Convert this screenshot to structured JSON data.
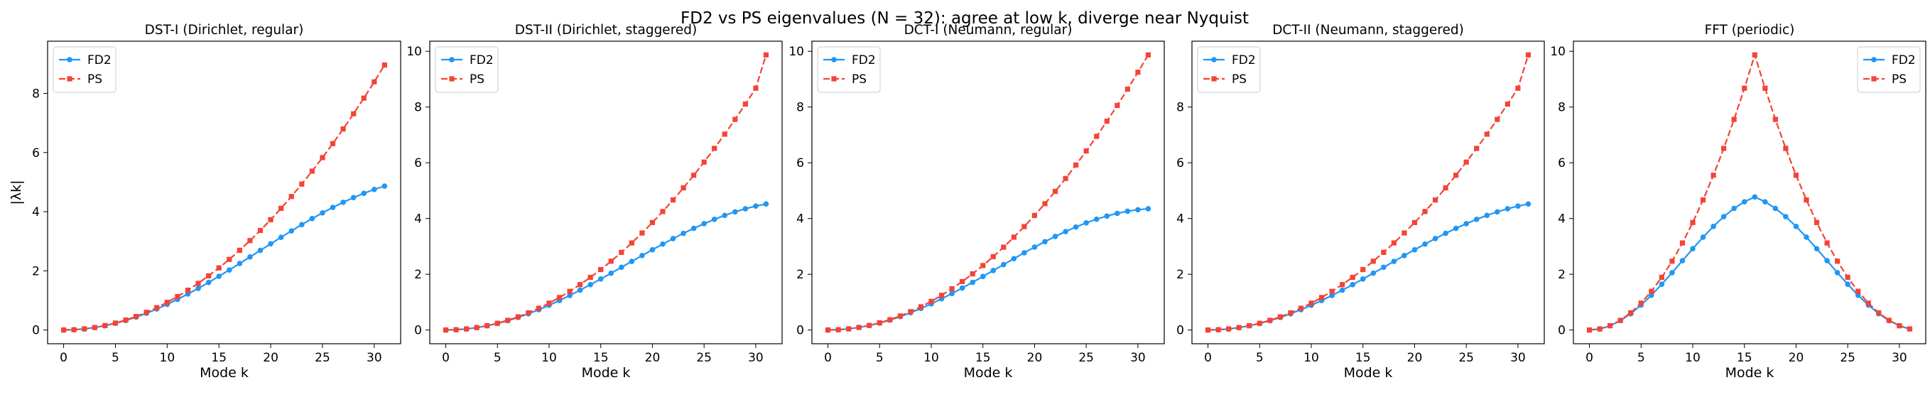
{
  "figure": {
    "suptitle": "FD2 vs PS eigenvalues (N = 32): agree at low k, diverge near Nyquist"
  },
  "colors": {
    "fd2": "#2196F3",
    "ps": "#F44336"
  },
  "chart_data": [
    {
      "type": "line",
      "title": "DST-I (Dirichlet, regular)",
      "xlabel": "Mode k",
      "ylabel": "|λk|",
      "xlim": [
        -1.55,
        32.55
      ],
      "ylim": [
        -0.465,
        9.765
      ],
      "xticks": [
        0,
        5,
        10,
        15,
        20,
        25,
        30
      ],
      "yticks": [
        0,
        2,
        4,
        6,
        8
      ],
      "legend": "top-left",
      "grid": false,
      "x": [
        0,
        1,
        2,
        3,
        4,
        5,
        6,
        7,
        8,
        9,
        10,
        11,
        12,
        13,
        14,
        15,
        16,
        17,
        18,
        19,
        20,
        21,
        22,
        23,
        24,
        25,
        26,
        27,
        28,
        29,
        30,
        31
      ],
      "series": [
        {
          "name": "FD2",
          "marker": "circle",
          "dash": false,
          "values": [
            0,
            0.009,
            0.037,
            0.083,
            0.146,
            0.227,
            0.324,
            0.437,
            0.566,
            0.709,
            0.866,
            1.035,
            1.216,
            1.407,
            1.607,
            1.815,
            2.029,
            2.247,
            2.469,
            2.692,
            2.914,
            3.134,
            3.35,
            3.561,
            3.765,
            3.959,
            4.144,
            4.317,
            4.477,
            4.622,
            4.752,
            4.866
          ]
        },
        {
          "name": "PS",
          "marker": "square",
          "dash": true,
          "values": [
            0,
            0.009,
            0.037,
            0.084,
            0.149,
            0.233,
            0.336,
            0.457,
            0.597,
            0.756,
            0.933,
            1.129,
            1.344,
            1.577,
            1.829,
            2.099,
            2.388,
            2.696,
            3.022,
            3.367,
            3.731,
            4.113,
            4.514,
            4.933,
            5.371,
            5.828,
            6.303,
            6.797,
            7.31,
            7.841,
            8.391,
            8.96
          ]
        }
      ]
    },
    {
      "type": "line",
      "title": "DST-II (Dirichlet, staggered)",
      "xlabel": "Mode k",
      "ylabel": "",
      "xlim": [
        -1.55,
        32.55
      ],
      "ylim": [
        -0.493,
        10.363
      ],
      "xticks": [
        0,
        5,
        10,
        15,
        20,
        25,
        30
      ],
      "yticks": [
        0,
        2,
        4,
        6,
        8,
        10
      ],
      "legend": "top-left",
      "grid": false,
      "x": [
        0,
        1,
        2,
        3,
        4,
        5,
        6,
        7,
        8,
        9,
        10,
        11,
        12,
        13,
        14,
        15,
        16,
        17,
        18,
        19,
        20,
        21,
        22,
        23,
        24,
        25,
        26,
        27,
        28,
        29,
        30,
        31
      ],
      "series": [
        {
          "name": "FD2",
          "marker": "circle",
          "dash": false,
          "values": [
            0,
            0.01,
            0.038,
            0.086,
            0.152,
            0.235,
            0.335,
            0.451,
            0.583,
            0.729,
            0.888,
            1.058,
            1.239,
            1.429,
            1.627,
            1.831,
            2.039,
            2.25,
            2.462,
            2.672,
            2.88,
            3.083,
            3.28,
            3.468,
            3.647,
            3.815,
            3.971,
            4.113,
            4.24,
            4.351,
            4.446,
            4.523
          ]
        },
        {
          "name": "PS",
          "marker": "square",
          "dash": true,
          "values": [
            0,
            0.01,
            0.039,
            0.087,
            0.154,
            0.241,
            0.347,
            0.472,
            0.617,
            0.781,
            0.964,
            1.166,
            1.388,
            1.629,
            1.89,
            2.169,
            2.468,
            2.786,
            3.124,
            3.481,
            3.856,
            4.252,
            4.666,
            5.1,
            5.553,
            6.025,
            6.516,
            7.027,
            7.557,
            8.106,
            8.675,
            9.87
          ]
        }
      ]
    },
    {
      "type": "line",
      "title": "DCT-I (Neumann, regular)",
      "xlabel": "Mode k",
      "ylabel": "",
      "xlim": [
        -1.55,
        32.55
      ],
      "ylim": [
        -0.493,
        10.363
      ],
      "xticks": [
        0,
        5,
        10,
        15,
        20,
        25,
        30
      ],
      "yticks": [
        0,
        2,
        4,
        6,
        8,
        10
      ],
      "legend": "top-left",
      "grid": false,
      "x": [
        0,
        1,
        2,
        3,
        4,
        5,
        6,
        7,
        8,
        9,
        10,
        11,
        12,
        13,
        14,
        15,
        16,
        17,
        18,
        19,
        20,
        21,
        22,
        23,
        24,
        25,
        26,
        27,
        28,
        29,
        30,
        31
      ],
      "series": [
        {
          "name": "FD2",
          "marker": "circle",
          "dash": false,
          "values": [
            0,
            0.01,
            0.041,
            0.092,
            0.162,
            0.251,
            0.357,
            0.48,
            0.619,
            0.773,
            0.94,
            1.119,
            1.308,
            1.506,
            1.711,
            1.921,
            2.134,
            2.348,
            2.561,
            2.77,
            2.974,
            3.17,
            3.357,
            3.533,
            3.696,
            3.844,
            3.976,
            4.09,
            4.185,
            4.261,
            4.316,
            4.35
          ]
        },
        {
          "name": "PS",
          "marker": "square",
          "dash": true,
          "values": [
            0,
            0.01,
            0.041,
            0.093,
            0.165,
            0.257,
            0.37,
            0.504,
            0.658,
            0.833,
            1.028,
            1.244,
            1.481,
            1.738,
            2.015,
            2.313,
            2.632,
            2.971,
            3.331,
            3.711,
            4.112,
            4.533,
            4.975,
            5.437,
            5.92,
            6.424,
            6.948,
            7.492,
            8.057,
            8.643,
            9.249,
            9.87
          ]
        }
      ]
    },
    {
      "type": "line",
      "title": "DCT-II (Neumann, staggered)",
      "xlabel": "Mode k",
      "ylabel": "",
      "xlim": [
        -1.55,
        32.55
      ],
      "ylim": [
        -0.493,
        10.363
      ],
      "xticks": [
        0,
        5,
        10,
        15,
        20,
        25,
        30
      ],
      "yticks": [
        0,
        2,
        4,
        6,
        8
      ],
      "legend": "top-left",
      "grid": false,
      "x": [
        0,
        1,
        2,
        3,
        4,
        5,
        6,
        7,
        8,
        9,
        10,
        11,
        12,
        13,
        14,
        15,
        16,
        17,
        18,
        19,
        20,
        21,
        22,
        23,
        24,
        25,
        26,
        27,
        28,
        29,
        30,
        31
      ],
      "series": [
        {
          "name": "FD2",
          "marker": "circle",
          "dash": false,
          "values": [
            0,
            0.01,
            0.038,
            0.086,
            0.152,
            0.235,
            0.335,
            0.451,
            0.583,
            0.729,
            0.888,
            1.058,
            1.239,
            1.429,
            1.627,
            1.831,
            2.039,
            2.25,
            2.462,
            2.672,
            2.88,
            3.083,
            3.28,
            3.468,
            3.647,
            3.815,
            3.971,
            4.113,
            4.24,
            4.351,
            4.446,
            4.523
          ]
        },
        {
          "name": "PS",
          "marker": "square",
          "dash": true,
          "values": [
            0,
            0.01,
            0.039,
            0.087,
            0.154,
            0.241,
            0.347,
            0.472,
            0.617,
            0.781,
            0.964,
            1.166,
            1.388,
            1.629,
            1.89,
            2.169,
            2.468,
            2.786,
            3.124,
            3.481,
            3.856,
            4.252,
            4.666,
            5.1,
            5.553,
            6.025,
            6.516,
            7.027,
            7.557,
            8.106,
            8.675,
            9.87
          ]
        }
      ]
    },
    {
      "type": "line",
      "title": "FFT (periodic)",
      "xlabel": "Mode k",
      "ylabel": "",
      "xlim": [
        -1.55,
        32.55
      ],
      "ylim": [
        -0.493,
        10.363
      ],
      "xticks": [
        0,
        5,
        10,
        15,
        20,
        25,
        30
      ],
      "yticks": [
        0,
        2,
        4,
        6,
        8,
        10
      ],
      "legend": "top-right",
      "grid": false,
      "x": [
        0,
        1,
        2,
        3,
        4,
        5,
        6,
        7,
        8,
        9,
        10,
        11,
        12,
        13,
        14,
        15,
        16,
        17,
        18,
        19,
        20,
        21,
        22,
        23,
        24,
        25,
        26,
        27,
        28,
        29,
        30,
        31
      ],
      "series": [
        {
          "name": "FD2",
          "marker": "circle",
          "dash": false,
          "values": [
            0,
            0.038,
            0.152,
            0.336,
            0.586,
            0.893,
            1.248,
            1.64,
            2.057,
            2.487,
            2.916,
            3.331,
            3.718,
            4.066,
            4.363,
            4.6,
            4.773,
            4.6,
            4.363,
            4.066,
            3.718,
            3.331,
            2.916,
            2.487,
            2.057,
            1.64,
            1.248,
            0.893,
            0.586,
            0.336,
            0.152,
            0.038
          ]
        },
        {
          "name": "PS",
          "marker": "square",
          "dash": true,
          "values": [
            0,
            0.039,
            0.154,
            0.347,
            0.617,
            0.964,
            1.388,
            1.89,
            2.468,
            3.124,
            3.856,
            4.666,
            5.553,
            6.516,
            7.557,
            8.675,
            9.87,
            8.675,
            7.557,
            6.516,
            5.553,
            4.666,
            3.856,
            3.124,
            2.468,
            1.89,
            1.388,
            0.964,
            0.617,
            0.347,
            0.154,
            0.039
          ]
        }
      ]
    }
  ]
}
